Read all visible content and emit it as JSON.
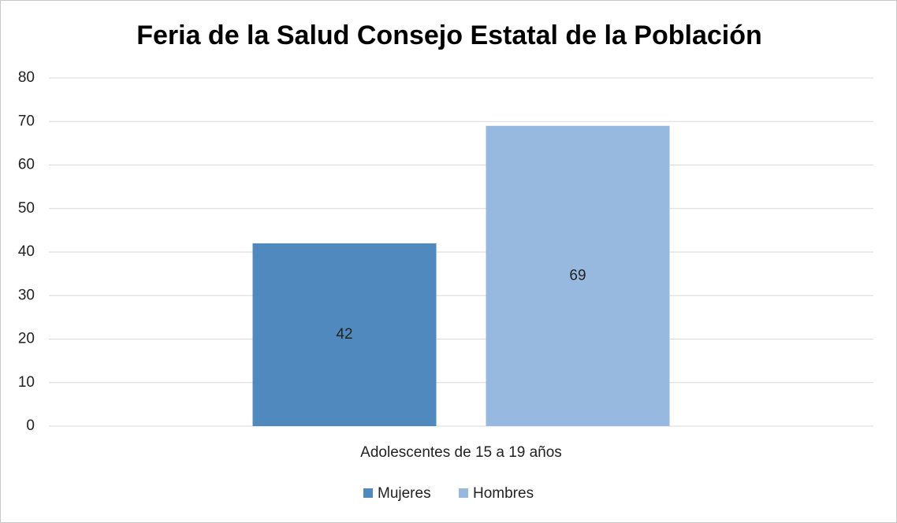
{
  "chart_data": {
    "type": "bar",
    "title": "Feria de la Salud Consejo Estatal de la Población",
    "categories": [
      "Adolescentes de 15 a 19 años"
    ],
    "series": [
      {
        "name": "Mujeres",
        "color": "#4f89bd",
        "values": [
          42
        ]
      },
      {
        "name": "Hombres",
        "color": "#98b9df",
        "values": [
          69
        ]
      }
    ],
    "ylim": [
      0,
      80
    ],
    "yticks": [
      0,
      10,
      20,
      30,
      40,
      50,
      60,
      70,
      80
    ],
    "grid": true,
    "legend": "bottom"
  }
}
